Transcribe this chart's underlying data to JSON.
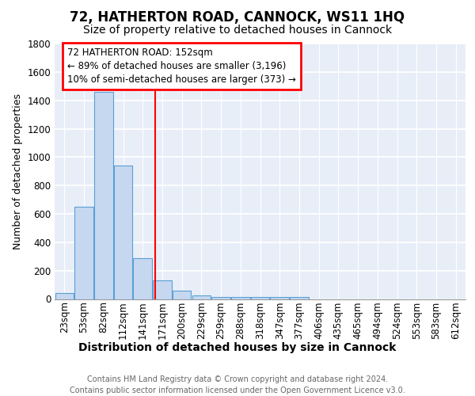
{
  "title": "72, HATHERTON ROAD, CANNOCK, WS11 1HQ",
  "subtitle": "Size of property relative to detached houses in Cannock",
  "xlabel": "Distribution of detached houses by size in Cannock",
  "ylabel": "Number of detached properties",
  "bins": [
    "23sqm",
    "53sqm",
    "82sqm",
    "112sqm",
    "141sqm",
    "171sqm",
    "200sqm",
    "229sqm",
    "259sqm",
    "288sqm",
    "318sqm",
    "347sqm",
    "377sqm",
    "406sqm",
    "435sqm",
    "465sqm",
    "494sqm",
    "524sqm",
    "553sqm",
    "583sqm",
    "612sqm"
  ],
  "values": [
    40,
    650,
    1460,
    940,
    285,
    130,
    60,
    25,
    15,
    15,
    15,
    15,
    15,
    0,
    0,
    0,
    0,
    0,
    0,
    0,
    0
  ],
  "bar_color": "#c5d8f0",
  "bar_edge_color": "#5a9fd4",
  "red_line_x": 4.62,
  "annotation_title": "72 HATHERTON ROAD: 152sqm",
  "annotation_line1": "← 89% of detached houses are smaller (3,196)",
  "annotation_line2": "10% of semi-detached houses are larger (373) →",
  "ylim": [
    0,
    1800
  ],
  "yticks": [
    0,
    200,
    400,
    600,
    800,
    1000,
    1200,
    1400,
    1600,
    1800
  ],
  "footer_line1": "Contains HM Land Registry data © Crown copyright and database right 2024.",
  "footer_line2": "Contains public sector information licensed under the Open Government Licence v3.0.",
  "plot_bg_color": "#e8eef8",
  "fig_bg_color": "#ffffff",
  "title_fontsize": 12,
  "subtitle_fontsize": 10,
  "ylabel_fontsize": 9,
  "xlabel_fontsize": 10,
  "tick_fontsize": 8.5,
  "footer_fontsize": 7,
  "ann_fontsize": 8.5
}
